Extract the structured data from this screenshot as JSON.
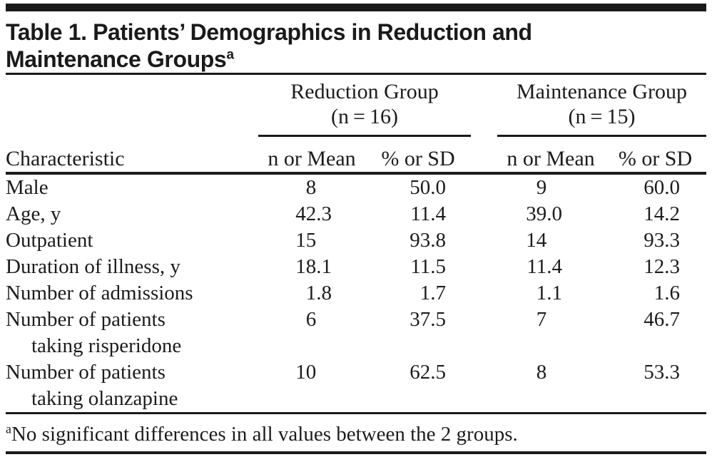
{
  "colors": {
    "text": "#1c1c1c",
    "rule": "#1a1a1a",
    "background": "#ffffff"
  },
  "table": {
    "title_line1": "Table 1. Patients’ Demographics in Reduction and",
    "title_line2": "Maintenance Groups",
    "title_footnote_marker": "a",
    "char_header": "Characteristic",
    "groups": [
      {
        "name": "Reduction Group",
        "n_label": "(n = 16)"
      },
      {
        "name": "Maintenance Group",
        "n_label": "(n = 15)"
      }
    ],
    "sub_headers": [
      "n or Mean",
      "% or SD",
      "n or Mean",
      "% or SD"
    ],
    "rows": [
      {
        "label": "Male",
        "label2": "",
        "values": [
          "8",
          "50.0",
          "9",
          "60.0"
        ]
      },
      {
        "label": "Age, y",
        "label2": "",
        "values": [
          "42.3",
          "11.4",
          "39.0",
          "14.2"
        ]
      },
      {
        "label": "Outpatient",
        "label2": "",
        "values": [
          "15",
          "93.8",
          "14",
          "93.3"
        ]
      },
      {
        "label": "Duration of illness, y",
        "label2": "",
        "values": [
          "18.1",
          "11.5",
          "11.4",
          "12.3"
        ]
      },
      {
        "label": "Number of admissions",
        "label2": "",
        "values": [
          "1.8",
          "1.7",
          "1.1",
          "1.6"
        ]
      },
      {
        "label": "Number of patients",
        "label2": "taking risperidone",
        "values": [
          "6",
          "37.5",
          "7",
          "46.7"
        ]
      },
      {
        "label": "Number of patients",
        "label2": "taking olanzapine",
        "values": [
          "10",
          "62.5",
          "8",
          "53.3"
        ]
      }
    ],
    "footnote_marker": "a",
    "footnote_text": "No significant differences in all values between the 2 groups."
  }
}
